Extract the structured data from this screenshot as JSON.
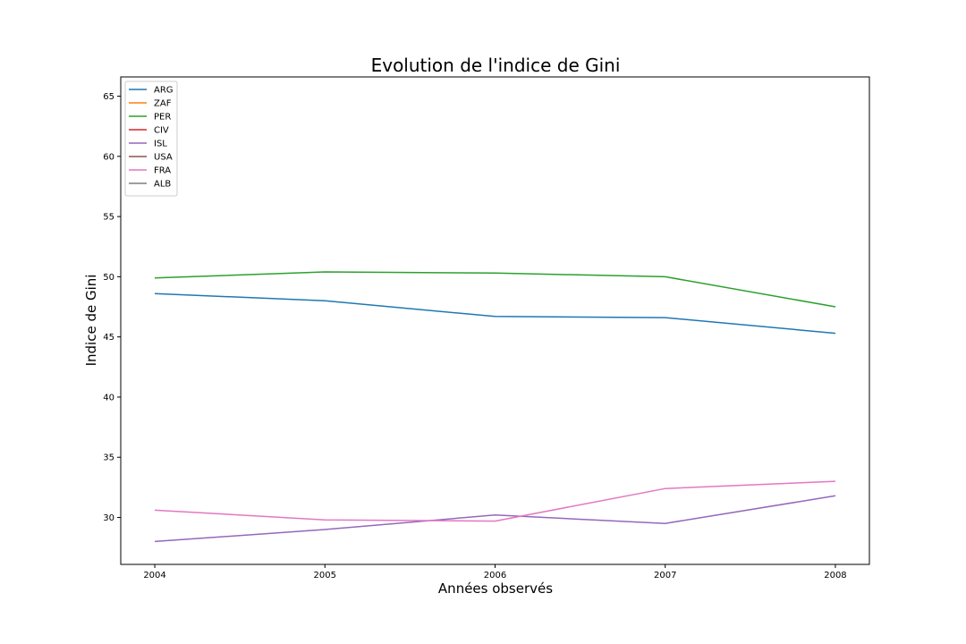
{
  "chart_data": {
    "type": "line",
    "title": "Evolution de l'indice de Gini",
    "xlabel": "Années observés",
    "ylabel": "Indice de Gini",
    "x": [
      2004,
      2005,
      2006,
      2007,
      2008
    ],
    "xlim": [
      2003.8,
      2008.2
    ],
    "ylim": [
      26.1,
      66.6
    ],
    "xticks": [
      "2004",
      "2005",
      "2006",
      "2007",
      "2008"
    ],
    "yticks": [
      "30",
      "35",
      "40",
      "45",
      "50",
      "55",
      "60",
      "65"
    ],
    "grid": false,
    "legend_position": "top-left",
    "series": [
      {
        "name": "ARG",
        "color": "#1f77b4",
        "values": [
          48.6,
          48.0,
          46.7,
          46.6,
          45.3
        ]
      },
      {
        "name": "ZAF",
        "color": "#ff7f0e",
        "values": [
          null,
          null,
          null,
          null,
          null
        ]
      },
      {
        "name": "PER",
        "color": "#2ca02c",
        "values": [
          49.9,
          50.4,
          50.3,
          50.0,
          47.5
        ]
      },
      {
        "name": "CIV",
        "color": "#d62728",
        "values": [
          null,
          null,
          null,
          null,
          null
        ]
      },
      {
        "name": "ISL",
        "color": "#9467bd",
        "values": [
          28.0,
          29.0,
          30.2,
          29.5,
          31.8
        ]
      },
      {
        "name": "USA",
        "color": "#8c564b",
        "values": [
          null,
          null,
          null,
          null,
          null
        ]
      },
      {
        "name": "FRA",
        "color": "#e377c2",
        "values": [
          30.6,
          29.8,
          29.7,
          32.4,
          33.0
        ]
      },
      {
        "name": "ALB",
        "color": "#7f7f7f",
        "values": [
          null,
          null,
          null,
          null,
          null
        ]
      }
    ]
  }
}
